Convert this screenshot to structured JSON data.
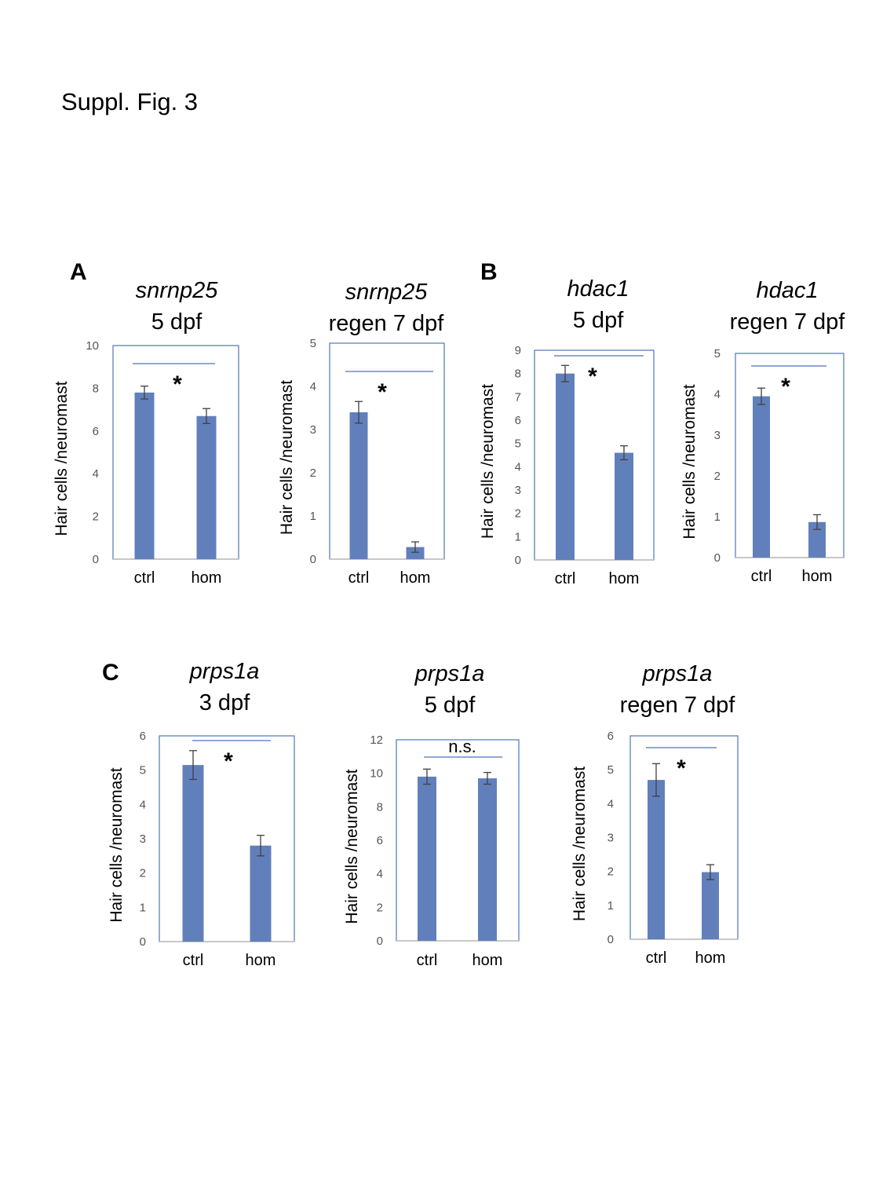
{
  "figure_title": "Suppl. Fig. 3",
  "panels": [
    "A",
    "B",
    "C"
  ],
  "style": {
    "bar_color": "#6180bb",
    "frame_color": "#4f74b8",
    "sig_line_color": "#4f74b8",
    "error_color": "#404040"
  },
  "chart_data": [
    {
      "type": "bar",
      "panel": "A",
      "title_gene": "snrnp25",
      "title_age": "5 dpf",
      "ylabel": "Hair cells /neuromast",
      "categories": [
        "ctrl",
        "hom"
      ],
      "ylim": [
        0,
        10
      ],
      "yticks": [
        "0",
        "2",
        "4",
        "6",
        "8",
        "10"
      ],
      "values": [
        7.8,
        6.7
      ],
      "errors": [
        0.3,
        0.35
      ],
      "significance": "*",
      "grid": false
    },
    {
      "type": "bar",
      "panel": "A",
      "title_gene": "snrnp25",
      "title_age": "regen 7 dpf",
      "ylabel": "Hair cells /neuromast",
      "categories": [
        "ctrl",
        "hom"
      ],
      "ylim": [
        0,
        5
      ],
      "yticks": [
        "0",
        "1",
        "2",
        "3",
        "4",
        "5"
      ],
      "values": [
        3.4,
        0.28
      ],
      "errors": [
        0.25,
        0.12
      ],
      "significance": "*",
      "grid": false
    },
    {
      "type": "bar",
      "panel": "B",
      "title_gene": "hdac1",
      "title_age": "5 dpf",
      "ylabel": "Hair cells /neuromast",
      "categories": [
        "ctrl",
        "hom"
      ],
      "ylim": [
        0,
        9
      ],
      "yticks": [
        "0",
        "1",
        "2",
        "3",
        "4",
        "5",
        "6",
        "7",
        "8",
        "9"
      ],
      "values": [
        8.0,
        4.6
      ],
      "errors": [
        0.35,
        0.3
      ],
      "significance": "*",
      "grid": false
    },
    {
      "type": "bar",
      "panel": "B",
      "title_gene": "hdac1",
      "title_age": "regen 7 dpf",
      "ylabel": "Hair cells /neuromast",
      "categories": [
        "ctrl",
        "hom"
      ],
      "ylim": [
        0,
        5
      ],
      "yticks": [
        "0",
        "1",
        "2",
        "3",
        "4",
        "5"
      ],
      "values": [
        3.95,
        0.87
      ],
      "errors": [
        0.2,
        0.18
      ],
      "significance": "*",
      "grid": false
    },
    {
      "type": "bar",
      "panel": "C",
      "title_gene": "prps1a",
      "title_age": "3 dpf",
      "ylabel": "Hair cells /neuromast",
      "categories": [
        "ctrl",
        "hom"
      ],
      "ylim": [
        0,
        6
      ],
      "yticks": [
        "0",
        "1",
        "2",
        "3",
        "4",
        "5",
        "6"
      ],
      "values": [
        5.15,
        2.8
      ],
      "errors": [
        0.42,
        0.3
      ],
      "significance": "*",
      "grid": false
    },
    {
      "type": "bar",
      "panel": "C",
      "title_gene": "prps1a",
      "title_age": "5 dpf",
      "ylabel": "Hair cells /neuromast",
      "categories": [
        "ctrl",
        "hom"
      ],
      "ylim": [
        0,
        12
      ],
      "yticks": [
        "0",
        "2",
        "4",
        "6",
        "8",
        "10",
        "12"
      ],
      "values": [
        9.8,
        9.7
      ],
      "errors": [
        0.45,
        0.35
      ],
      "significance": "n.s.",
      "grid": false
    },
    {
      "type": "bar",
      "panel": "C",
      "title_gene": "prps1a",
      "title_age": "regen 7 dpf",
      "ylabel": "Hair cells /neuromast",
      "categories": [
        "ctrl",
        "hom"
      ],
      "ylim": [
        0,
        6
      ],
      "yticks": [
        "0",
        "1",
        "2",
        "3",
        "4",
        "5",
        "6"
      ],
      "values": [
        4.7,
        1.98
      ],
      "errors": [
        0.48,
        0.22
      ],
      "significance": "*",
      "grid": false
    }
  ]
}
